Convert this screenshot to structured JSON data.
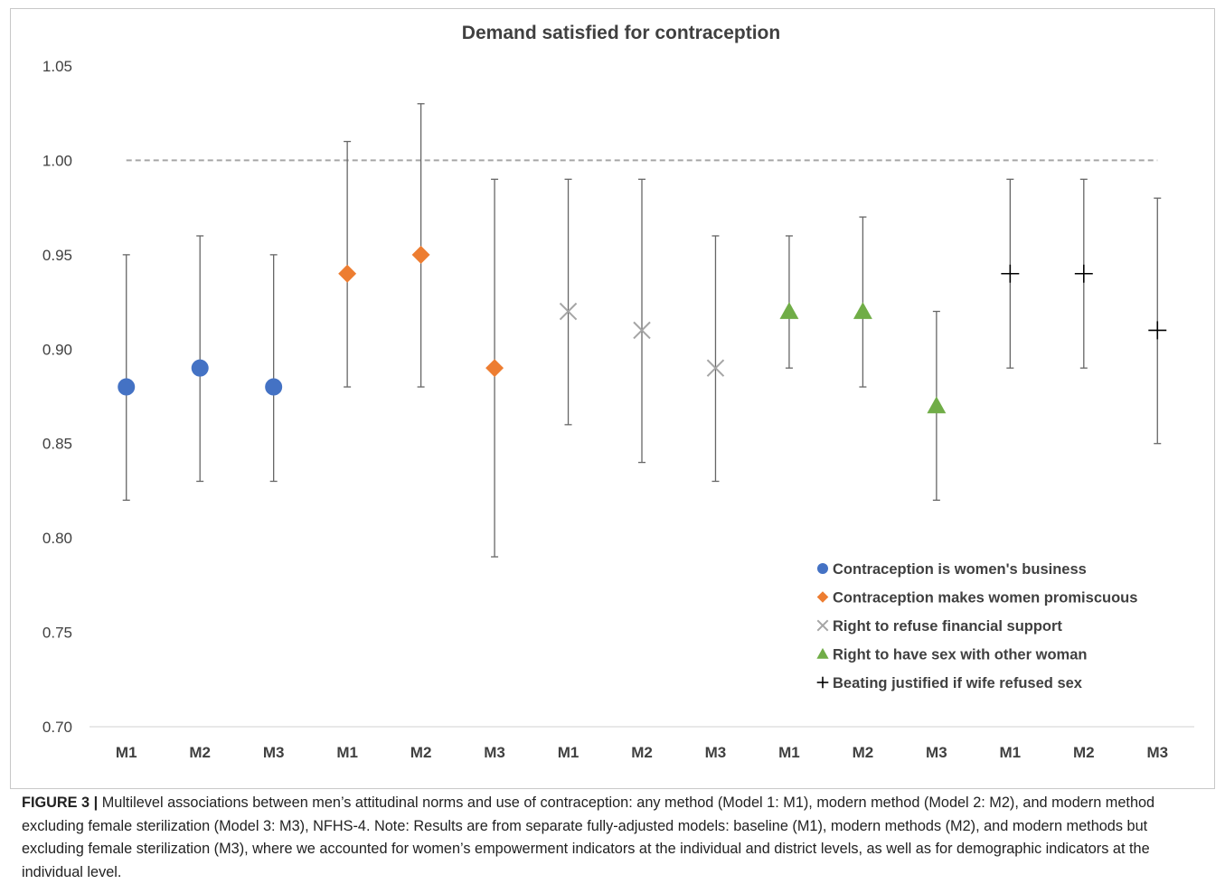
{
  "chart_data": {
    "type": "scatter",
    "title": "Demand satisfied for contraception",
    "xlabel": "",
    "ylabel": "",
    "ylim": [
      0.7,
      1.05
    ],
    "yticks": [
      "0.70",
      "0.75",
      "0.80",
      "0.85",
      "0.90",
      "0.95",
      "1.00",
      "1.05"
    ],
    "reference_line": 1.0,
    "grid": false,
    "legend_position": "bottom-right",
    "categories": [
      "M1",
      "M2",
      "M3",
      "M1",
      "M2",
      "M3",
      "M1",
      "M2",
      "M3",
      "M1",
      "M2",
      "M3",
      "M1",
      "M2",
      "M3"
    ],
    "series": [
      {
        "name": "Contraception is women's business",
        "marker": "circle",
        "color": "#4472c4",
        "points": [
          {
            "value": 0.88,
            "low": 0.82,
            "high": 0.95
          },
          {
            "value": 0.89,
            "low": 0.83,
            "high": 0.96
          },
          {
            "value": 0.88,
            "low": 0.83,
            "high": 0.95
          }
        ]
      },
      {
        "name": "Contraception makes women promiscuous",
        "marker": "diamond",
        "color": "#ed7d31",
        "points": [
          {
            "value": 0.94,
            "low": 0.88,
            "high": 1.01
          },
          {
            "value": 0.95,
            "low": 0.88,
            "high": 1.03
          },
          {
            "value": 0.89,
            "low": 0.79,
            "high": 0.99
          }
        ]
      },
      {
        "name": "Right to refuse financial support",
        "marker": "x",
        "color": "#a5a5a5",
        "points": [
          {
            "value": 0.92,
            "low": 0.86,
            "high": 0.99
          },
          {
            "value": 0.91,
            "low": 0.84,
            "high": 0.99
          },
          {
            "value": 0.89,
            "low": 0.83,
            "high": 0.96
          }
        ]
      },
      {
        "name": "Right to have sex with other woman",
        "marker": "triangle",
        "color": "#70ad47",
        "points": [
          {
            "value": 0.92,
            "low": 0.89,
            "high": 0.96
          },
          {
            "value": 0.92,
            "low": 0.88,
            "high": 0.97
          },
          {
            "value": 0.87,
            "low": 0.82,
            "high": 0.92
          }
        ]
      },
      {
        "name": "Beating justified if wife refused sex",
        "marker": "plus",
        "color": "#000000",
        "points": [
          {
            "value": 0.94,
            "low": 0.89,
            "high": 0.99
          },
          {
            "value": 0.94,
            "low": 0.89,
            "high": 0.99
          },
          {
            "value": 0.91,
            "low": 0.85,
            "high": 0.98
          }
        ]
      }
    ]
  },
  "caption": {
    "label": "FIGURE 3 |",
    "text": " Multilevel associations between men’s attitudinal norms and use of contraception: any method (Model 1: M1), modern method (Model 2: M2), and modern method excluding female sterilization (Model 3: M3), NFHS-4. Note: Results are from separate fully-adjusted models: baseline (M1), modern methods (M2), and modern methods but excluding female sterilization (M3), where we accounted for women’s empowerment indicators at the individual and district levels, as well as for demographic indicators at the individual level."
  }
}
